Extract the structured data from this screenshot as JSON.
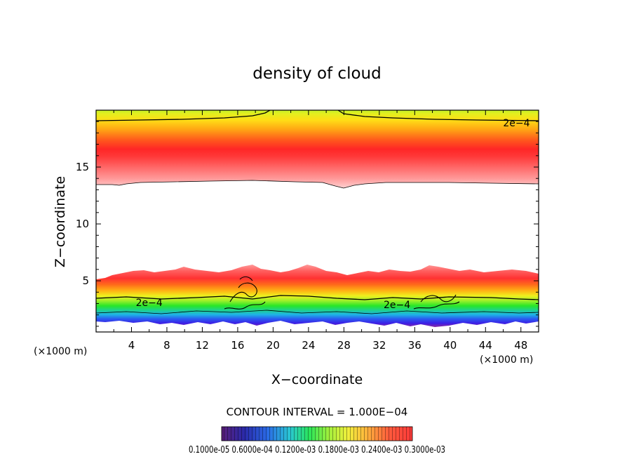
{
  "chart_data": {
    "type": "heatmap",
    "title": "density of cloud",
    "xlabel": "X−coordinate",
    "ylabel": "Z−coordinate",
    "x_unit_left": "(×1000 m)",
    "x_unit_right": "(×1000 m)",
    "xlim": [
      0,
      50
    ],
    "ylim": [
      0.5,
      20
    ],
    "x_ticks": [
      4,
      8,
      12,
      16,
      20,
      24,
      28,
      32,
      36,
      40,
      44,
      48
    ],
    "y_ticks": [
      5,
      10,
      15
    ],
    "contour_interval_text": "CONTOUR INTERVAL = 1.000E−04",
    "colorbar_labels_text": "0.1000e-05 0.6000e-04 0.1200e-03 0.1800e-03 0.2400e-03 0.3000e-03",
    "colorbar_range": [
      1e-06,
      0.0003
    ],
    "contour_labels": [
      {
        "text": "2e−4",
        "x": 47.5,
        "z": 18.9
      },
      {
        "text": "2e−4",
        "x": 6.0,
        "z": 3.1
      },
      {
        "text": "2e−4",
        "x": 34.0,
        "z": 2.9
      }
    ],
    "upper_layer": {
      "z_bottom": 13.3,
      "z_top": 20,
      "peak_z": 15.5,
      "contour_2e4_z": 18.9
    },
    "lower_layer": {
      "z_bottom": 1.2,
      "z_top": 5.2,
      "contour_2e4_z": 3.2
    }
  }
}
